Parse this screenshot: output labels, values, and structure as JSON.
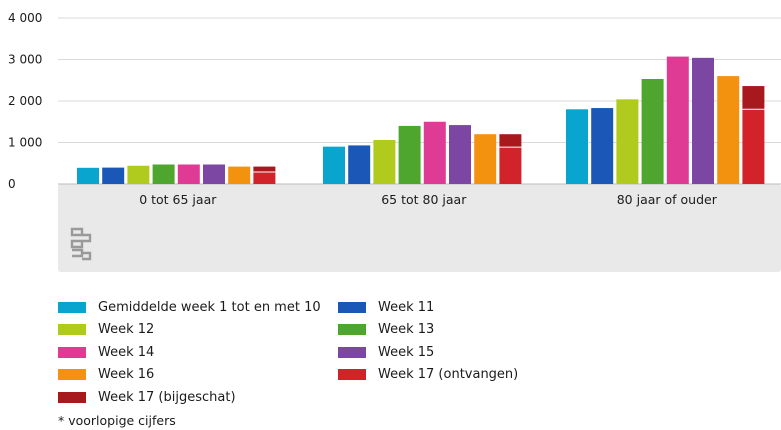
{
  "chart_data": {
    "type": "bar",
    "title": "",
    "xlabel": "",
    "ylabel": "",
    "ylim": [
      0,
      4000
    ],
    "yticks": [
      0,
      1000,
      2000,
      3000,
      4000
    ],
    "ytick_labels": [
      "0",
      "1 000",
      "2 000",
      "3 000",
      "4 000"
    ],
    "grid": true,
    "categories": [
      "0 tot 65 jaar",
      "65 tot 80 jaar",
      "80 jaar of ouder"
    ],
    "series": [
      {
        "name": "Gemiddelde week 1 tot en met 10",
        "color": "#0aa5cf",
        "values": [
          390,
          900,
          1800
        ]
      },
      {
        "name": "Week 11",
        "color": "#1b57b6",
        "values": [
          395,
          930,
          1830
        ]
      },
      {
        "name": "Week 12",
        "color": "#b0cb1e",
        "values": [
          440,
          1060,
          2040
        ]
      },
      {
        "name": "Week 13",
        "color": "#4ea62f",
        "values": [
          470,
          1400,
          2530
        ]
      },
      {
        "name": "Week 14",
        "color": "#df3b94",
        "values": [
          470,
          1500,
          3070
        ]
      },
      {
        "name": "Week 15",
        "color": "#7b47a3",
        "values": [
          470,
          1420,
          3040
        ]
      },
      {
        "name": "Week 16",
        "color": "#f3920e",
        "values": [
          420,
          1200,
          2600
        ]
      },
      {
        "name": "Week 17 (ontvangen)",
        "color": "#d2232a",
        "values": [
          290,
          890,
          1800
        ]
      },
      {
        "name": "Week 17 (bijgeschat)",
        "color": "#a8191e",
        "values": [
          130,
          310,
          560
        ]
      }
    ],
    "stacked_pair": [
      "Week 17 (ontvangen)",
      "Week 17 (bijgeschat)"
    ],
    "legend_placement": "bottom"
  },
  "legend": [
    {
      "label": "Gemiddelde week 1 tot en met 10",
      "color": "#0aa5cf"
    },
    {
      "label": "Week 11",
      "color": "#1b57b6"
    },
    {
      "label": "Week 12",
      "color": "#b0cb1e"
    },
    {
      "label": "Week 13",
      "color": "#4ea62f"
    },
    {
      "label": "Week 14",
      "color": "#df3b94"
    },
    {
      "label": "Week 15",
      "color": "#7b47a3"
    },
    {
      "label": "Week 16",
      "color": "#f3920e"
    },
    {
      "label": "Week 17 (ontvangen)",
      "color": "#d2232a"
    },
    {
      "label": "Week 17 (bijgeschat)",
      "color": "#a8191e"
    }
  ],
  "footnote": "* voorlopige cijfers",
  "logo": {
    "icon": "cbs-logo-icon",
    "text": "cbs"
  }
}
